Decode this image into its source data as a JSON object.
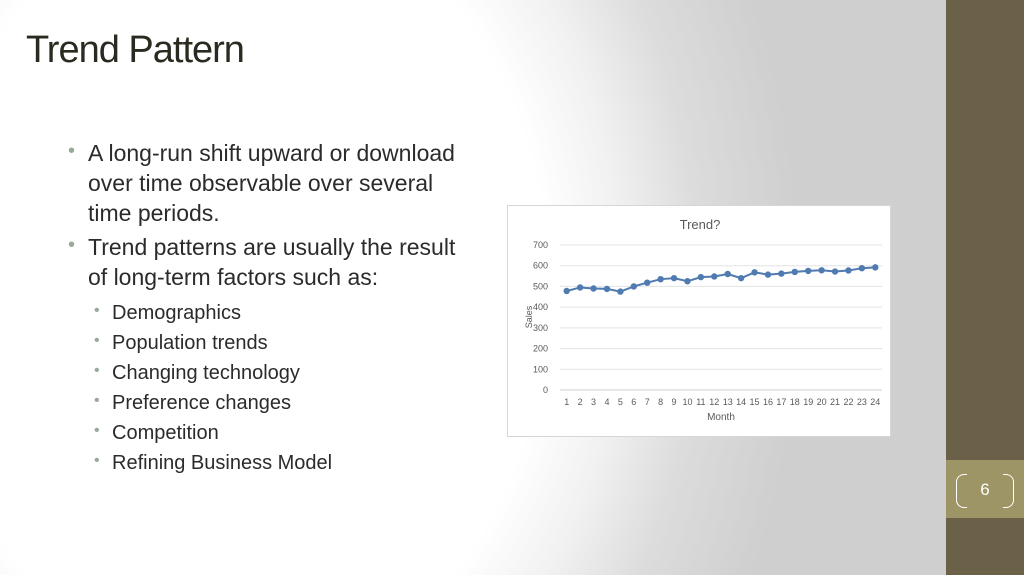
{
  "slide": {
    "title": "Trend Pattern",
    "page_number": "6",
    "bullets": [
      {
        "text": "A long-run shift upward or download over time observable over several time periods.",
        "sub": []
      },
      {
        "text": "Trend patterns are usually the result of long-term factors such as:",
        "sub": [
          "Demographics",
          "Population trends",
          "Changing technology",
          "Preference changes",
          "Competition",
          "Refining Business Model"
        ]
      }
    ]
  },
  "chart_data": {
    "type": "line",
    "title": "Trend?",
    "xlabel": "Month",
    "ylabel": "Sales",
    "x": [
      1,
      2,
      3,
      4,
      5,
      6,
      7,
      8,
      9,
      10,
      11,
      12,
      13,
      14,
      15,
      16,
      17,
      18,
      19,
      20,
      21,
      22,
      23,
      24
    ],
    "series": [
      {
        "values": [
          478,
          495,
          490,
          488,
          475,
          500,
          518,
          535,
          540,
          525,
          545,
          548,
          560,
          540,
          568,
          557,
          562,
          570,
          575,
          578,
          572,
          577,
          588,
          592
        ]
      }
    ],
    "ylim": [
      0,
      700
    ],
    "yticks": [
      0,
      100,
      200,
      300,
      400,
      500,
      600,
      700
    ],
    "grid": true,
    "legend": "none",
    "colors": {
      "line": "#4f7bb0",
      "grid": "#e3e3e3",
      "text": "#595959"
    }
  }
}
